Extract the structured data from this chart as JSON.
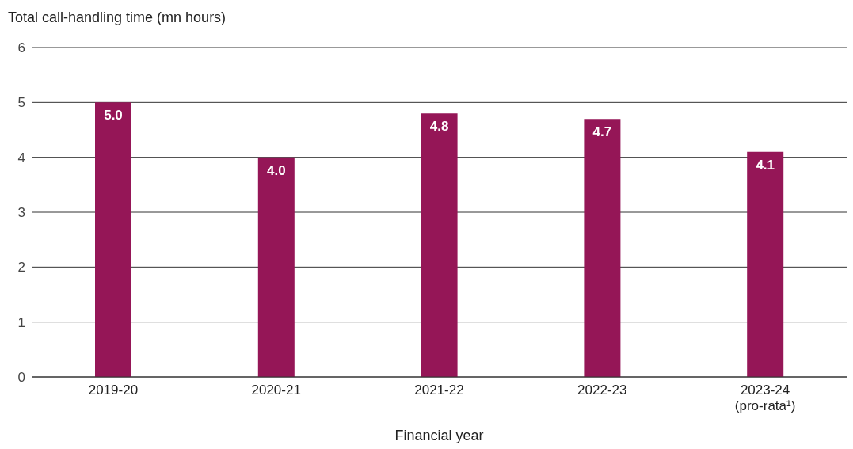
{
  "chart_data": {
    "type": "bar",
    "ylabel": "Total call-handling time (mn hours)",
    "xlabel": "Financial year",
    "categories": [
      "2019-20",
      "2020-21",
      "2021-22",
      "2022-23",
      "2023-24\n(pro-rata¹)"
    ],
    "values": [
      5.0,
      4.0,
      4.8,
      4.7,
      4.1
    ],
    "value_labels": [
      "5.0",
      "4.0",
      "4.8",
      "4.7",
      "4.1"
    ],
    "color": "#951657",
    "ylim": [
      0,
      6
    ],
    "yticks": [
      0,
      1,
      2,
      3,
      4,
      5,
      6
    ],
    "grid": "y"
  }
}
